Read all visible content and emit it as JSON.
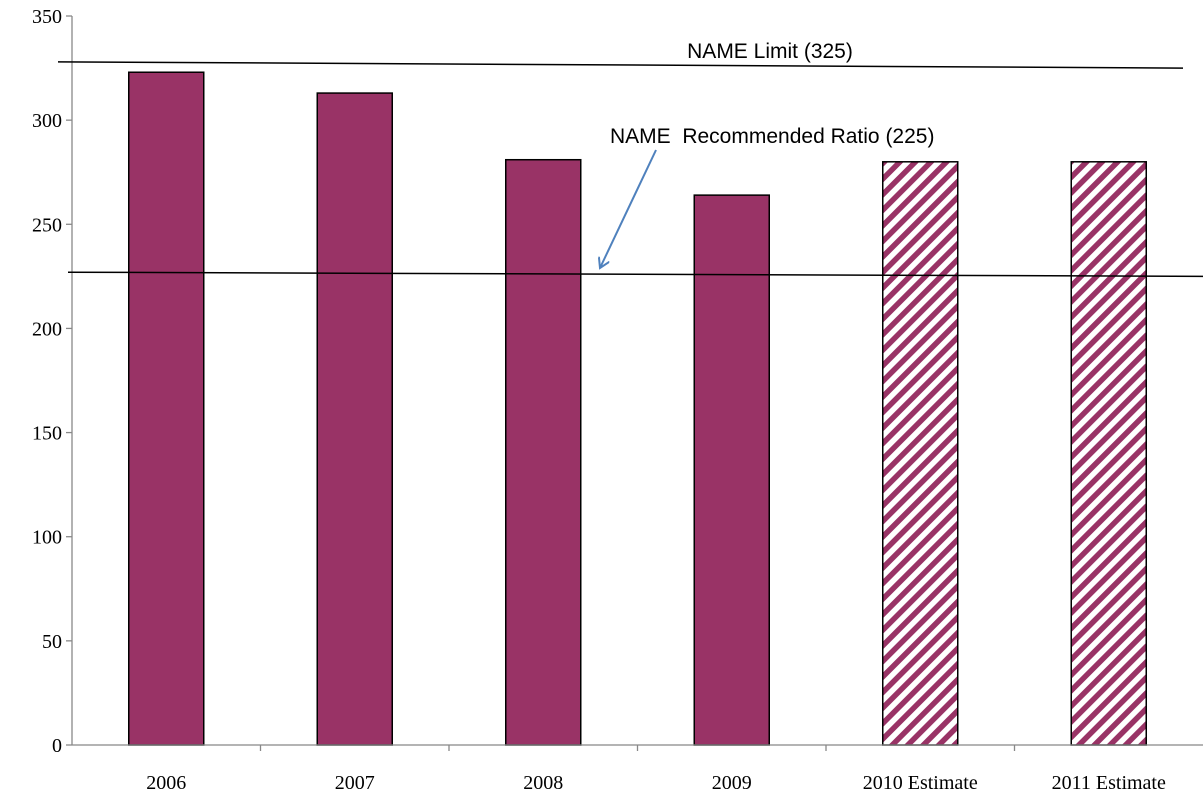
{
  "chart_data": {
    "type": "bar",
    "categories": [
      "2006",
      "2007",
      "2008",
      "2009",
      "2010 Estimate",
      "2011 Estimate"
    ],
    "values": [
      323,
      313,
      281,
      264,
      280,
      280
    ],
    "estimated": [
      false,
      false,
      false,
      false,
      true,
      true
    ],
    "ylim": [
      0,
      350
    ],
    "yticks": [
      0,
      50,
      100,
      150,
      200,
      250,
      300,
      350
    ],
    "grid": false,
    "colors": {
      "bar": "#993366",
      "hatch_stripe": "#993366",
      "hatch_bg": "#ffffff",
      "line": "#000000",
      "arrow": "#4f81bd"
    },
    "reference_lines": [
      {
        "label": "NAME Limit (325)",
        "y_start": 328,
        "y_end": 325
      },
      {
        "label": "NAME  Recommended Ratio (225)",
        "y_start": 227,
        "y_end": 225,
        "arrow": true
      }
    ]
  }
}
